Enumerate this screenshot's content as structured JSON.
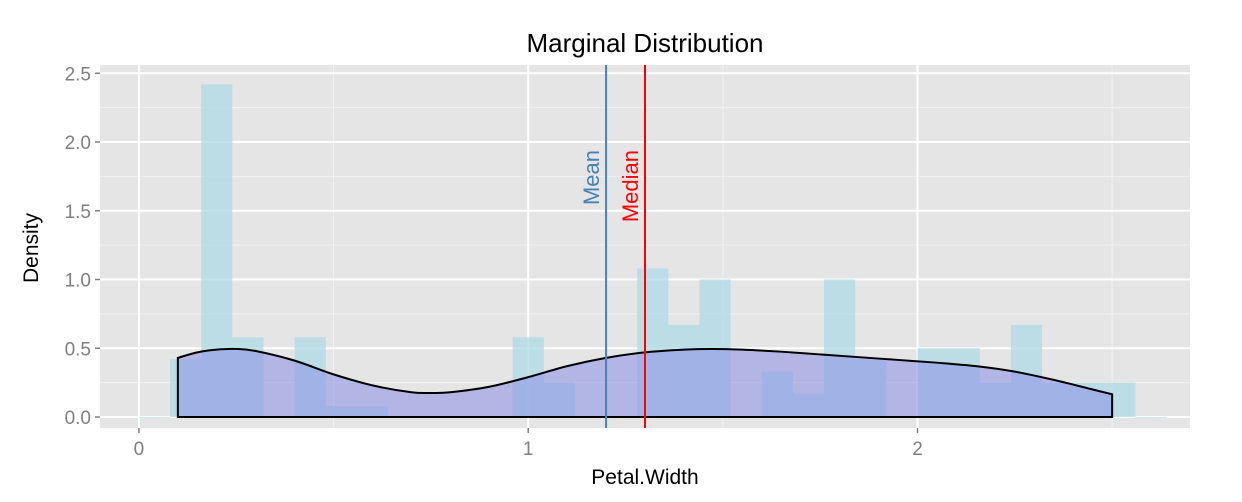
{
  "chart_data": {
    "type": "histogram",
    "title": "Marginal Distribution",
    "xlabel": "Petal.Width",
    "ylabel": "Density",
    "xlim": [
      -0.1,
      2.7
    ],
    "ylim": [
      -0.08,
      2.56
    ],
    "x_ticks": [
      0,
      1,
      2
    ],
    "x_tick_labels": [
      "0",
      "1",
      "2"
    ],
    "y_ticks": [
      0,
      0.5,
      1,
      1.5,
      2,
      2.5
    ],
    "y_tick_labels": [
      "0.0",
      "0.5",
      "1.0",
      "1.5",
      "2.0",
      "2.5"
    ],
    "grid": true,
    "bin_width": 0.08,
    "bins": [
      {
        "x0": 0.0,
        "x1": 0.08,
        "density": 0.0
      },
      {
        "x0": 0.08,
        "x1": 0.16,
        "density": 0.42
      },
      {
        "x0": 0.16,
        "x1": 0.24,
        "density": 2.42
      },
      {
        "x0": 0.24,
        "x1": 0.32,
        "density": 0.58
      },
      {
        "x0": 0.32,
        "x1": 0.4,
        "density": 0.0
      },
      {
        "x0": 0.4,
        "x1": 0.48,
        "density": 0.58
      },
      {
        "x0": 0.48,
        "x1": 0.56,
        "density": 0.08
      },
      {
        "x0": 0.56,
        "x1": 0.64,
        "density": 0.08
      },
      {
        "x0": 0.64,
        "x1": 0.72,
        "density": 0.0
      },
      {
        "x0": 0.72,
        "x1": 0.8,
        "density": 0.0
      },
      {
        "x0": 0.8,
        "x1": 0.88,
        "density": 0.0
      },
      {
        "x0": 0.88,
        "x1": 0.96,
        "density": 0.0
      },
      {
        "x0": 0.96,
        "x1": 1.04,
        "density": 0.58
      },
      {
        "x0": 1.04,
        "x1": 1.12,
        "density": 0.25
      },
      {
        "x0": 1.12,
        "x1": 1.2,
        "density": 0.0
      },
      {
        "x0": 1.2,
        "x1": 1.28,
        "density": 0.0
      },
      {
        "x0": 1.28,
        "x1": 1.36,
        "density": 1.08
      },
      {
        "x0": 1.36,
        "x1": 1.44,
        "density": 0.67
      },
      {
        "x0": 1.44,
        "x1": 1.52,
        "density": 1.0
      },
      {
        "x0": 1.52,
        "x1": 1.6,
        "density": 0.0
      },
      {
        "x0": 1.6,
        "x1": 1.68,
        "density": 0.33
      },
      {
        "x0": 1.68,
        "x1": 1.76,
        "density": 0.17
      },
      {
        "x0": 1.76,
        "x1": 1.84,
        "density": 1.0
      },
      {
        "x0": 1.84,
        "x1": 1.92,
        "density": 0.42
      },
      {
        "x0": 1.92,
        "x1": 2.0,
        "density": 0.0
      },
      {
        "x0": 2.0,
        "x1": 2.08,
        "density": 0.5
      },
      {
        "x0": 2.08,
        "x1": 2.16,
        "density": 0.5
      },
      {
        "x0": 2.16,
        "x1": 2.24,
        "density": 0.25
      },
      {
        "x0": 2.24,
        "x1": 2.32,
        "density": 0.67
      },
      {
        "x0": 2.32,
        "x1": 2.4,
        "density": 0.25
      },
      {
        "x0": 2.4,
        "x1": 2.48,
        "density": 0.25
      },
      {
        "x0": 2.48,
        "x1": 2.56,
        "density": 0.25
      },
      {
        "x0": 2.56,
        "x1": 2.64,
        "density": 0.0
      }
    ],
    "density_curve": {
      "x": [
        0.1,
        0.15,
        0.2,
        0.25,
        0.3,
        0.4,
        0.5,
        0.6,
        0.7,
        0.75,
        0.8,
        0.9,
        1.0,
        1.1,
        1.2,
        1.3,
        1.4,
        1.47,
        1.55,
        1.65,
        1.75,
        1.85,
        1.95,
        2.05,
        2.15,
        2.25,
        2.35,
        2.45,
        2.5
      ],
      "y": [
        0.43,
        0.47,
        0.49,
        0.495,
        0.48,
        0.41,
        0.31,
        0.23,
        0.18,
        0.175,
        0.18,
        0.22,
        0.29,
        0.37,
        0.43,
        0.47,
        0.49,
        0.495,
        0.49,
        0.475,
        0.455,
        0.435,
        0.415,
        0.395,
        0.37,
        0.33,
        0.27,
        0.2,
        0.165
      ]
    },
    "reference_lines": [
      {
        "label": "Mean",
        "value": 1.2,
        "color": "#4682b4"
      },
      {
        "label": "Median",
        "value": 1.3,
        "color": "#ff0000"
      }
    ],
    "colors": {
      "panel_background": "#e5e5e5",
      "grid_major": "#ffffff",
      "grid_minor": "#f2f2f2",
      "histogram_fill": "#add8e6",
      "density_fill": "#8a8fe6",
      "density_outline": "#000000",
      "tick_label": "#7f7f7f"
    }
  }
}
